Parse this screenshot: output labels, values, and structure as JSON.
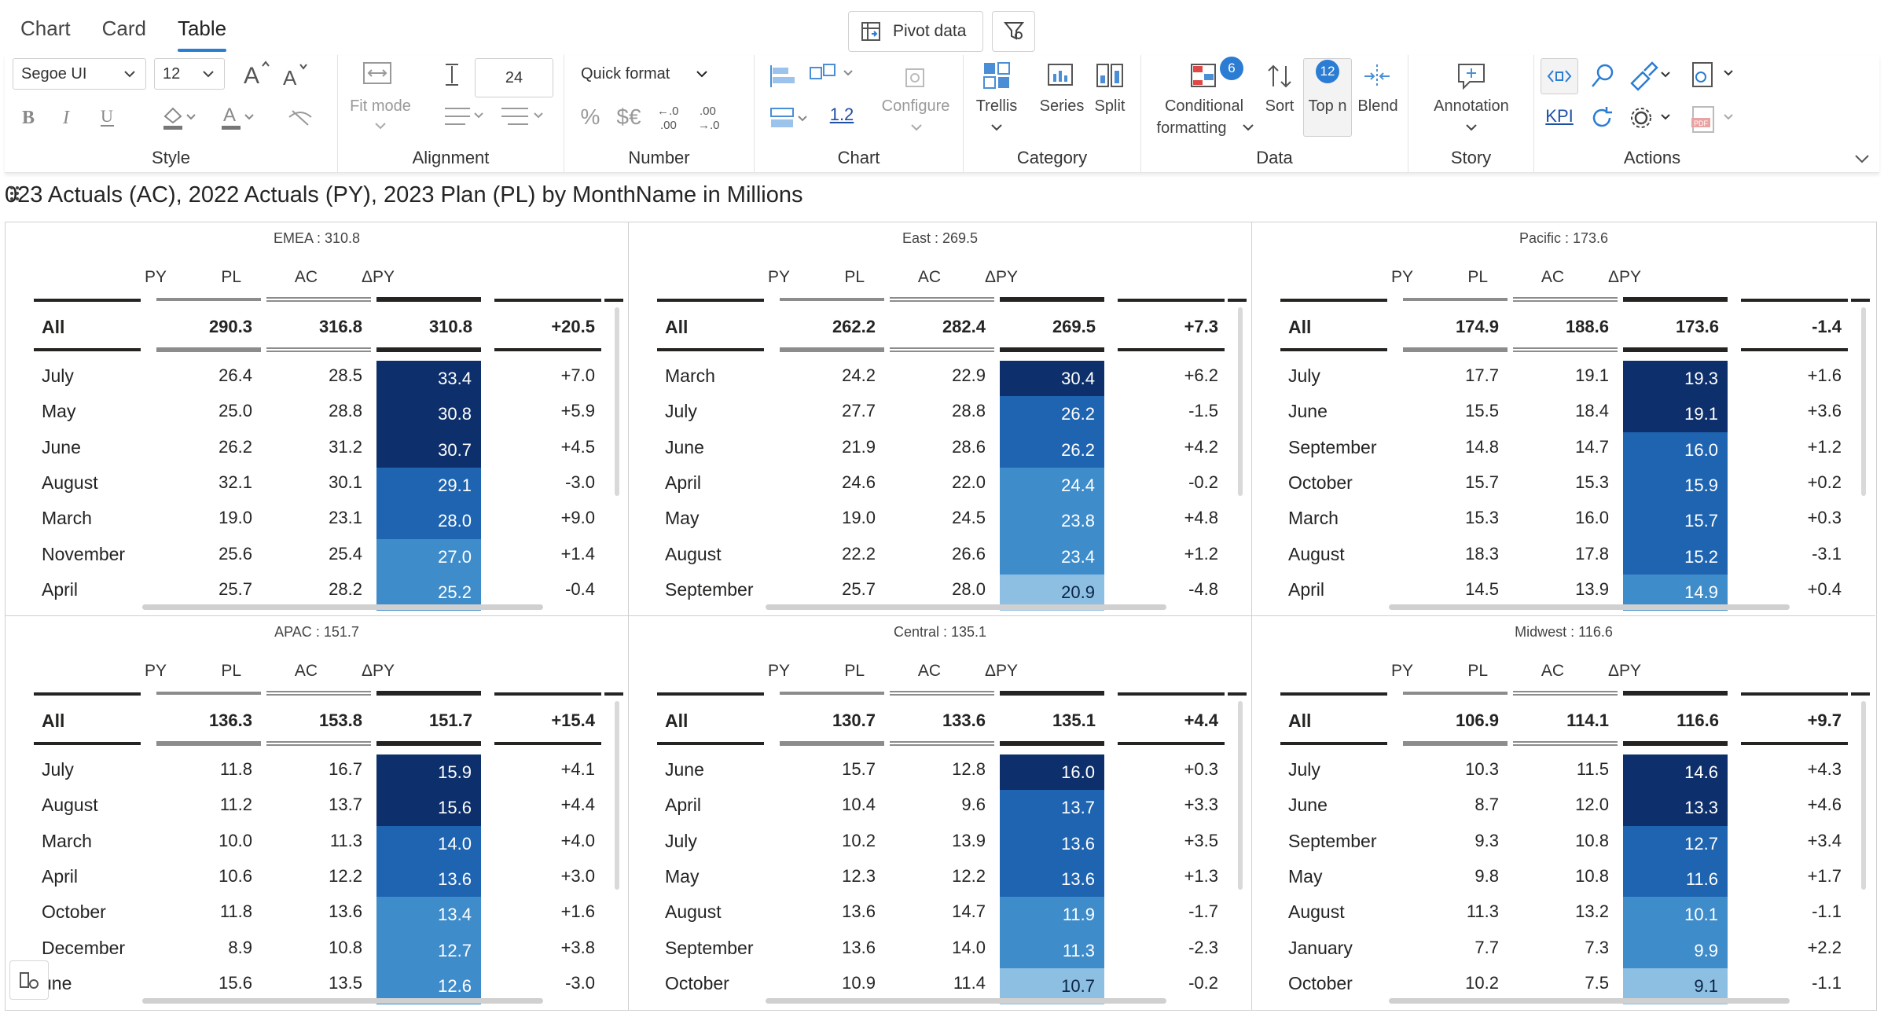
{
  "tabs": [
    "Chart",
    "Card",
    "Table"
  ],
  "active_tab": "Table",
  "pivot_label": "Pivot data",
  "ribbon": {
    "font_family": "Segoe UI",
    "font_size": "12",
    "row_height": "24",
    "fit_mode": "Fit mode",
    "quick_format": "Quick format",
    "decimal_sample": "1.2",
    "configure": "Configure",
    "trellis": "Trellis",
    "series": "Series",
    "split": "Split",
    "conditional": "Conditional",
    "formatting": "formatting",
    "cf_badge": "6",
    "sort": "Sort",
    "topn": "Top n",
    "topn_badge": "12",
    "blend": "Blend",
    "annotation": "Annotation",
    "kpi": "KPI",
    "groups": [
      "Style",
      "Alignment",
      "Number",
      "Chart",
      "Category",
      "Data",
      "Story",
      "Actions"
    ]
  },
  "title_text": "023 Actuals (AC), 2022 Actuals (PY), 2023 Plan (PL) by MonthName in Millions",
  "columns": [
    "PY",
    "PL",
    "AC",
    "ΔPY"
  ],
  "colors": {
    "dark": "#0d2f6b",
    "mid_dark": "#1e64b0",
    "mid": "#3f8ccb",
    "light": "#8dbfe3",
    "text_light": "#ffffff",
    "text_dark": "#0b2447"
  },
  "panels": [
    {
      "region": "EMEA",
      "total": "310.8",
      "all": {
        "label": "All",
        "py": "290.3",
        "pl": "316.8",
        "ac": "310.8",
        "dpy": "+20.5"
      },
      "rows": [
        {
          "label": "July",
          "py": "26.4",
          "pl": "28.5",
          "ac": "33.4",
          "dpy": "+7.0",
          "shade": "dark"
        },
        {
          "label": "May",
          "py": "25.0",
          "pl": "28.8",
          "ac": "30.8",
          "dpy": "+5.9",
          "shade": "dark"
        },
        {
          "label": "June",
          "py": "26.2",
          "pl": "31.2",
          "ac": "30.7",
          "dpy": "+4.5",
          "shade": "dark"
        },
        {
          "label": "August",
          "py": "32.1",
          "pl": "30.1",
          "ac": "29.1",
          "dpy": "-3.0",
          "shade": "mid_dark"
        },
        {
          "label": "March",
          "py": "19.0",
          "pl": "23.1",
          "ac": "28.0",
          "dpy": "+9.0",
          "shade": "mid_dark"
        },
        {
          "label": "November",
          "py": "25.6",
          "pl": "25.4",
          "ac": "27.0",
          "dpy": "+1.4",
          "shade": "mid"
        },
        {
          "label": "April",
          "py": "25.7",
          "pl": "28.2",
          "ac": "25.2",
          "dpy": "-0.4",
          "shade": "mid"
        }
      ]
    },
    {
      "region": "East",
      "total": "269.5",
      "all": {
        "label": "All",
        "py": "262.2",
        "pl": "282.4",
        "ac": "269.5",
        "dpy": "+7.3"
      },
      "rows": [
        {
          "label": "March",
          "py": "24.2",
          "pl": "22.9",
          "ac": "30.4",
          "dpy": "+6.2",
          "shade": "dark"
        },
        {
          "label": "July",
          "py": "27.7",
          "pl": "28.8",
          "ac": "26.2",
          "dpy": "-1.5",
          "shade": "mid_dark"
        },
        {
          "label": "June",
          "py": "21.9",
          "pl": "28.6",
          "ac": "26.2",
          "dpy": "+4.2",
          "shade": "mid_dark"
        },
        {
          "label": "April",
          "py": "24.6",
          "pl": "22.0",
          "ac": "24.4",
          "dpy": "-0.2",
          "shade": "mid"
        },
        {
          "label": "May",
          "py": "19.0",
          "pl": "24.5",
          "ac": "23.8",
          "dpy": "+4.8",
          "shade": "mid"
        },
        {
          "label": "August",
          "py": "22.2",
          "pl": "26.6",
          "ac": "23.4",
          "dpy": "+1.2",
          "shade": "mid"
        },
        {
          "label": "September",
          "py": "25.7",
          "pl": "28.0",
          "ac": "20.9",
          "dpy": "-4.8",
          "shade": "light"
        }
      ]
    },
    {
      "region": "Pacific",
      "total": "173.6",
      "all": {
        "label": "All",
        "py": "174.9",
        "pl": "188.6",
        "ac": "173.6",
        "dpy": "-1.4"
      },
      "rows": [
        {
          "label": "July",
          "py": "17.7",
          "pl": "19.1",
          "ac": "19.3",
          "dpy": "+1.6",
          "shade": "dark"
        },
        {
          "label": "June",
          "py": "15.5",
          "pl": "18.4",
          "ac": "19.1",
          "dpy": "+3.6",
          "shade": "dark"
        },
        {
          "label": "September",
          "py": "14.8",
          "pl": "14.7",
          "ac": "16.0",
          "dpy": "+1.2",
          "shade": "mid_dark"
        },
        {
          "label": "October",
          "py": "15.7",
          "pl": "15.3",
          "ac": "15.9",
          "dpy": "+0.2",
          "shade": "mid_dark"
        },
        {
          "label": "March",
          "py": "15.3",
          "pl": "16.0",
          "ac": "15.7",
          "dpy": "+0.3",
          "shade": "mid_dark"
        },
        {
          "label": "August",
          "py": "18.3",
          "pl": "17.8",
          "ac": "15.2",
          "dpy": "-3.1",
          "shade": "mid_dark"
        },
        {
          "label": "April",
          "py": "14.5",
          "pl": "13.9",
          "ac": "14.9",
          "dpy": "+0.4",
          "shade": "mid"
        }
      ]
    },
    {
      "region": "APAC",
      "total": "151.7",
      "all": {
        "label": "All",
        "py": "136.3",
        "pl": "153.8",
        "ac": "151.7",
        "dpy": "+15.4"
      },
      "rows": [
        {
          "label": "July",
          "py": "11.8",
          "pl": "16.7",
          "ac": "15.9",
          "dpy": "+4.1",
          "shade": "dark"
        },
        {
          "label": "August",
          "py": "11.2",
          "pl": "13.7",
          "ac": "15.6",
          "dpy": "+4.4",
          "shade": "dark"
        },
        {
          "label": "March",
          "py": "10.0",
          "pl": "11.3",
          "ac": "14.0",
          "dpy": "+4.0",
          "shade": "mid_dark"
        },
        {
          "label": "April",
          "py": "10.6",
          "pl": "12.2",
          "ac": "13.6",
          "dpy": "+3.0",
          "shade": "mid_dark"
        },
        {
          "label": "October",
          "py": "11.8",
          "pl": "13.6",
          "ac": "13.4",
          "dpy": "+1.6",
          "shade": "mid"
        },
        {
          "label": "December",
          "py": "8.9",
          "pl": "10.8",
          "ac": "12.7",
          "dpy": "+3.8",
          "shade": "mid"
        },
        {
          "label": "une",
          "py": "15.6",
          "pl": "13.5",
          "ac": "12.6",
          "dpy": "-3.0",
          "shade": "mid"
        }
      ]
    },
    {
      "region": "Central",
      "total": "135.1",
      "all": {
        "label": "All",
        "py": "130.7",
        "pl": "133.6",
        "ac": "135.1",
        "dpy": "+4.4"
      },
      "rows": [
        {
          "label": "June",
          "py": "15.7",
          "pl": "12.8",
          "ac": "16.0",
          "dpy": "+0.3",
          "shade": "dark"
        },
        {
          "label": "April",
          "py": "10.4",
          "pl": "9.6",
          "ac": "13.7",
          "dpy": "+3.3",
          "shade": "mid_dark"
        },
        {
          "label": "July",
          "py": "10.2",
          "pl": "13.9",
          "ac": "13.6",
          "dpy": "+3.5",
          "shade": "mid_dark"
        },
        {
          "label": "May",
          "py": "12.3",
          "pl": "12.2",
          "ac": "13.6",
          "dpy": "+1.3",
          "shade": "mid_dark"
        },
        {
          "label": "August",
          "py": "13.6",
          "pl": "14.7",
          "ac": "11.9",
          "dpy": "-1.7",
          "shade": "mid"
        },
        {
          "label": "September",
          "py": "13.6",
          "pl": "14.0",
          "ac": "11.3",
          "dpy": "-2.3",
          "shade": "mid"
        },
        {
          "label": "October",
          "py": "10.9",
          "pl": "11.4",
          "ac": "10.7",
          "dpy": "-0.2",
          "shade": "light"
        }
      ]
    },
    {
      "region": "Midwest",
      "total": "116.6",
      "all": {
        "label": "All",
        "py": "106.9",
        "pl": "114.1",
        "ac": "116.6",
        "dpy": "+9.7"
      },
      "rows": [
        {
          "label": "July",
          "py": "10.3",
          "pl": "11.5",
          "ac": "14.6",
          "dpy": "+4.3",
          "shade": "dark"
        },
        {
          "label": "June",
          "py": "8.7",
          "pl": "12.0",
          "ac": "13.3",
          "dpy": "+4.6",
          "shade": "dark"
        },
        {
          "label": "September",
          "py": "9.3",
          "pl": "10.8",
          "ac": "12.7",
          "dpy": "+3.4",
          "shade": "mid_dark"
        },
        {
          "label": "May",
          "py": "9.8",
          "pl": "10.8",
          "ac": "11.6",
          "dpy": "+1.7",
          "shade": "mid_dark"
        },
        {
          "label": "August",
          "py": "11.3",
          "pl": "13.2",
          "ac": "10.1",
          "dpy": "-1.1",
          "shade": "mid"
        },
        {
          "label": "January",
          "py": "7.7",
          "pl": "7.3",
          "ac": "9.9",
          "dpy": "+2.2",
          "shade": "mid"
        },
        {
          "label": "October",
          "py": "10.2",
          "pl": "7.5",
          "ac": "9.1",
          "dpy": "-1.1",
          "shade": "light"
        }
      ]
    }
  ]
}
